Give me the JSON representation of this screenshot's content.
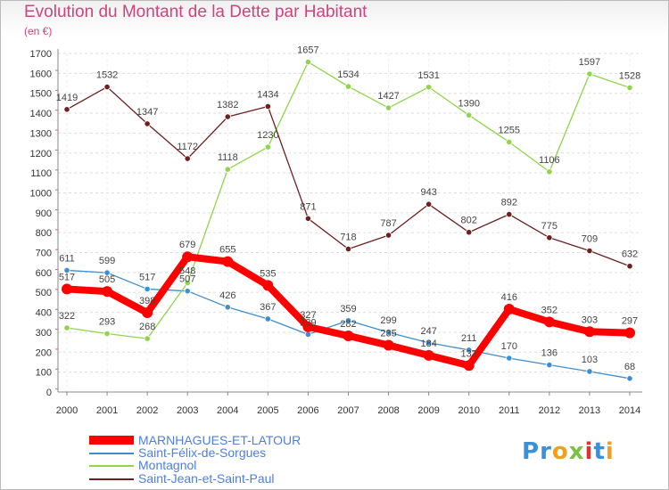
{
  "title": "Evolution du Montant de la Dette par Habitant",
  "unit": "(en €)",
  "logo": "Proxiti",
  "chart_data": {
    "type": "line",
    "title": "Evolution du Montant de la Dette par Habitant",
    "ylabel": "(en €)",
    "ylim": [
      0,
      1700
    ],
    "yticks": [
      0,
      100,
      200,
      300,
      400,
      500,
      600,
      700,
      800,
      900,
      1000,
      1100,
      1200,
      1300,
      1400,
      1500,
      1600,
      1700
    ],
    "grid": "horizontal",
    "legend_position": "bottom-left",
    "x": [
      "2000",
      "2001",
      "2002",
      "2003",
      "2004",
      "2005",
      "2006",
      "2007",
      "2008",
      "2009",
      "2010",
      "2011",
      "2012",
      "2013",
      "2014"
    ],
    "series": [
      {
        "name": "MARNHAGUES-ET-LATOUR",
        "color": "#ff0000",
        "values": [
          517,
          505,
          398,
          679,
          655,
          535,
          327,
          282,
          235,
          184,
          133,
          416,
          352,
          303,
          297
        ]
      },
      {
        "name": "Saint-Félix-de-Sorgues",
        "color": "#3c8ed0",
        "values": [
          611,
          599,
          517,
          507,
          426,
          367,
          289,
          359,
          299,
          247,
          211,
          170,
          136,
          103,
          68
        ]
      },
      {
        "name": "Montagnol",
        "color": "#8fd449",
        "values": [
          322,
          293,
          268,
          548,
          1118,
          1230,
          1657,
          1534,
          1427,
          1531,
          1390,
          1255,
          1106,
          1597,
          1528
        ]
      },
      {
        "name": "Saint-Jean-et-Saint-Paul",
        "color": "#6e1f1f",
        "values": [
          1419,
          1532,
          1347,
          1172,
          1382,
          1434,
          871,
          718,
          787,
          943,
          802,
          892,
          775,
          709,
          632
        ]
      }
    ]
  }
}
